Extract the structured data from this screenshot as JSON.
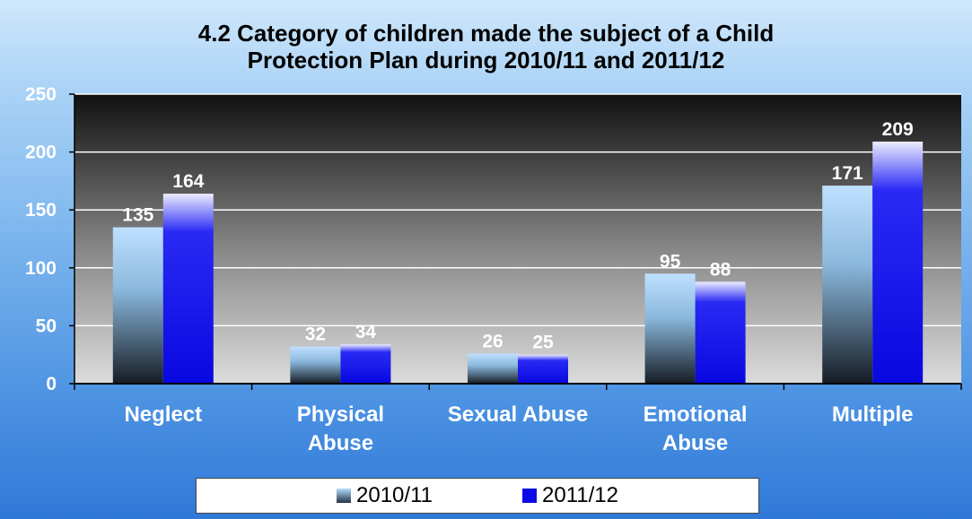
{
  "chart_data": {
    "type": "bar",
    "title": "4.2 Category of children made the subject of a Child Protection Plan during 2010/11 and 2011/12",
    "title_lines": [
      "4.2 Category of children made the subject of a Child",
      "Protection Plan during 2010/11 and 2011/12"
    ],
    "categories": [
      [
        "Neglect"
      ],
      [
        "Physical",
        "Abuse"
      ],
      [
        "Sexual Abuse"
      ],
      [
        "Emotional",
        "Abuse"
      ],
      [
        "Multiple"
      ]
    ],
    "series": [
      {
        "name": "2010/11",
        "values": [
          135,
          32,
          26,
          95,
          171
        ]
      },
      {
        "name": "2011/12",
        "values": [
          164,
          34,
          25,
          88,
          209
        ]
      }
    ],
    "ylim": [
      0,
      250
    ],
    "yticks": [
      0,
      50,
      100,
      150,
      200,
      250
    ],
    "xlabel": "",
    "ylabel": "",
    "grid": true,
    "legend_position": "bottom",
    "colors": {
      "series_0_top": "#b8ddff",
      "series_0_bottom": "#1a2230",
      "series_1_top": "#e6e6ff",
      "series_1_main": "#0a0ae8",
      "plot_top": "#101010",
      "plot_bottom": "#d8d8d8"
    }
  },
  "legend": {
    "items": [
      {
        "label": "2010/11"
      },
      {
        "label": "2011/12"
      }
    ]
  }
}
